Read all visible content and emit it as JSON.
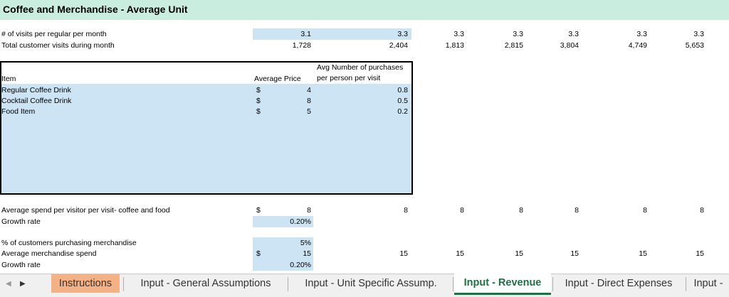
{
  "title": "Coffee and Merchandise - Average Unit",
  "summary_rows": [
    {
      "label": "# of visits per regular per month",
      "values": [
        "3.1",
        "3.3",
        "3.3",
        "3.3",
        "3.3",
        "3.3",
        "3.3"
      ]
    },
    {
      "label": "Total customer visits during month",
      "values": [
        "1,728",
        "2,404",
        "1,813",
        "2,815",
        "3,804",
        "4,749",
        "5,653"
      ]
    }
  ],
  "items_table": {
    "headers": {
      "item": "Item",
      "price": "Average Price",
      "purchases": "Avg Number of purchases per person per visit"
    },
    "rows": [
      {
        "item": "Regular Coffee Drink",
        "currency": "$",
        "price": "4",
        "purchases": "0.8"
      },
      {
        "item": "Cocktail Coffee Drink",
        "currency": "$",
        "price": "8",
        "purchases": "0.5"
      },
      {
        "item": "Food Item",
        "currency": "$",
        "price": "5",
        "purchases": "0.2"
      }
    ]
  },
  "spend_rows": [
    {
      "label": "Average spend per visitor per visit- coffee and food",
      "currency": "$",
      "values": [
        "8",
        "8",
        "8",
        "8",
        "8",
        "8",
        "8"
      ]
    },
    {
      "label": "Growth rate",
      "values": [
        "0.20%"
      ]
    },
    {
      "label": "% of customers purchasing merchandise",
      "values": [
        "5%"
      ]
    },
    {
      "label": "Average merchandise spend",
      "currency": "$",
      "values": [
        "15",
        "15",
        "15",
        "15",
        "15",
        "15",
        "15"
      ]
    },
    {
      "label": "Growth rate",
      "values": [
        "0.20%"
      ]
    }
  ],
  "sheet_tabs": [
    "Instructions",
    "Input - General Assumptions",
    "Input - Unit Specific Assump.",
    "Input - Revenue",
    "Input - Direct Expenses",
    "Input -"
  ]
}
